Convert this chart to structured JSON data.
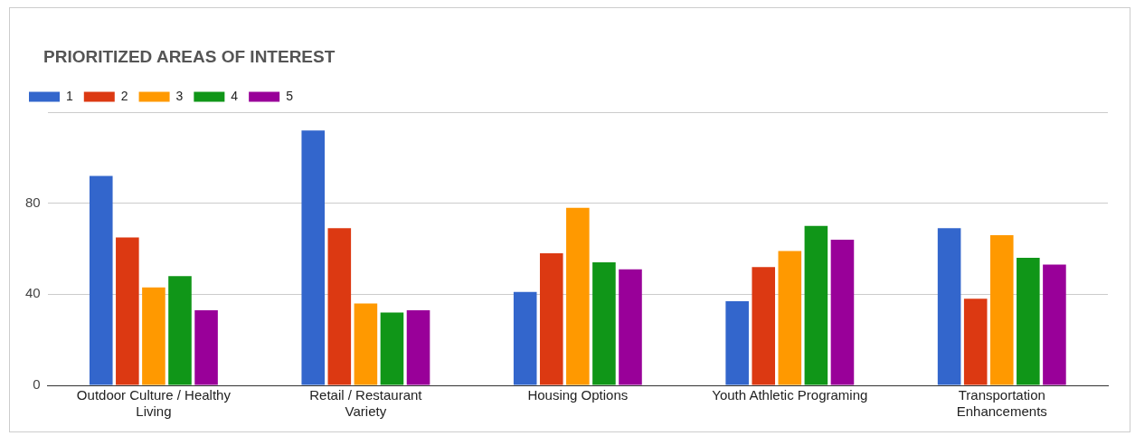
{
  "chart_data": {
    "type": "bar",
    "title": "PRIORITIZED AREAS OF INTEREST",
    "categories": [
      "Outdoor Culture / Healthy Living",
      "Retail / Restaurant Variety",
      "Housing Options",
      "Youth Athletic Programing",
      "Transportation Enhancements"
    ],
    "series": [
      {
        "name": "1",
        "color": "#3366cc",
        "values": [
          92,
          112,
          41,
          37,
          69
        ]
      },
      {
        "name": "2",
        "color": "#dc3912",
        "values": [
          65,
          69,
          58,
          52,
          38
        ]
      },
      {
        "name": "3",
        "color": "#ff9900",
        "values": [
          43,
          36,
          78,
          59,
          66
        ]
      },
      {
        "name": "4",
        "color": "#109618",
        "values": [
          48,
          32,
          54,
          70,
          56
        ]
      },
      {
        "name": "5",
        "color": "#990099",
        "values": [
          33,
          33,
          51,
          64,
          53
        ]
      }
    ],
    "ylim": [
      0,
      120
    ],
    "yticks": [
      0,
      40,
      80,
      {
        "value": 120,
        "label": null
      }
    ],
    "grid": "y",
    "legend": "top left"
  }
}
